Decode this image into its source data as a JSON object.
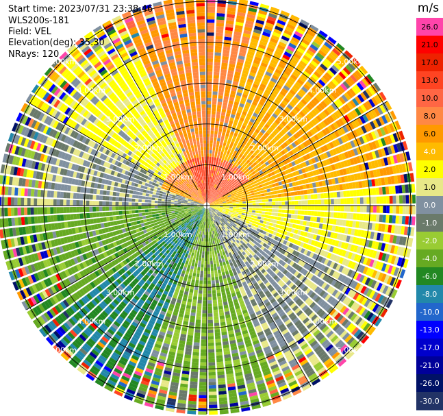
{
  "info": {
    "start_time": "Start time: 2023/07/31 23:38:46",
    "site": "WLS200s-181",
    "field": "Field: VEL",
    "elevation": "Elevation(deg): 35.30",
    "nrays": "NRays: 120"
  },
  "chart_data": {
    "type": "heatmap",
    "projection": "polar-ppi",
    "field": "VEL",
    "n_rays": 120,
    "ring_labels": [
      "1.00km",
      "2.00km",
      "3.00km",
      "4.00km",
      "5.00km"
    ],
    "ring_values_km": [
      1,
      2,
      3,
      4,
      5
    ],
    "max_range_km": 5.1,
    "spoke_angles_deg": [
      0,
      30,
      60,
      90,
      120,
      150,
      180,
      210,
      240,
      270,
      300,
      330
    ],
    "colorbar": {
      "unit": "m/s",
      "tick_labels": [
        "26.0",
        "21.0",
        "17.0",
        "13.0",
        "10.0",
        "8.0",
        "6.0",
        "4.0",
        "2.0",
        "1.0",
        "0.0",
        "-1.0",
        "-2.0",
        "-4.0",
        "-6.0",
        "-8.0",
        "-10.0",
        "-13.0",
        "-17.0",
        "-21.0",
        "-26.0",
        "-30.0"
      ],
      "bin_colors": [
        "#ff44aa",
        "#ff0000",
        "#ee2200",
        "#ff4422",
        "#ff6644",
        "#ff8844",
        "#ff9900",
        "#ffbb00",
        "#ffff00",
        "#e8e888",
        "#8090a0",
        "#6a7a6a",
        "#99cc33",
        "#66aa22",
        "#228822",
        "#2288aa",
        "#2266cc",
        "#0000ff",
        "#0000cc",
        "#000099",
        "#001166",
        "#223366"
      ]
    },
    "sectors": [
      {
        "from_deg": -25,
        "to_deg": 15,
        "value_ms": 8.0
      },
      {
        "from_deg": 15,
        "to_deg": 85,
        "value_ms": 5.5
      },
      {
        "from_deg": 85,
        "to_deg": 115,
        "value_ms": 2.5
      },
      {
        "from_deg": 115,
        "to_deg": 160,
        "value_ms": 0.5
      },
      {
        "from_deg": 160,
        "to_deg": 200,
        "value_ms": -2.0
      },
      {
        "from_deg": 200,
        "to_deg": 235,
        "value_ms": -6.0
      },
      {
        "from_deg": 235,
        "to_deg": 270,
        "value_ms": -3.0
      },
      {
        "from_deg": 270,
        "to_deg": 300,
        "value_ms": 0.5
      },
      {
        "from_deg": 300,
        "to_deg": 335,
        "value_ms": 2.5
      }
    ]
  }
}
